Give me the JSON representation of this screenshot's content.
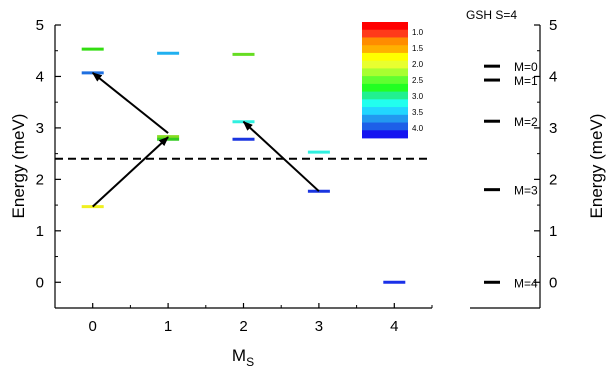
{
  "chart_data": [
    {
      "type": "scatter",
      "mark": "horizontal-level",
      "xlabel": "M",
      "xlabel_subscript": "S",
      "ylabel": "Energy (meV)",
      "xlim": [
        -0.5,
        4.5
      ],
      "ylim": [
        -0.5,
        5
      ],
      "x_ticks": [
        "0",
        "1",
        "2",
        "3",
        "4"
      ],
      "y_ticks": [
        "0",
        "1",
        "2",
        "3",
        "4",
        "5"
      ],
      "levels": [
        {
          "x": 0,
          "y": 4.53,
          "color": "#33dd11"
        },
        {
          "x": 0,
          "y": 4.07,
          "color": "#1e6fe0"
        },
        {
          "x": 0,
          "y": 1.47,
          "color": "#f0f020"
        },
        {
          "x": 1,
          "y": 4.45,
          "color": "#20b0f0"
        },
        {
          "x": 1,
          "y": 2.83,
          "color": "#88dd22"
        },
        {
          "x": 1,
          "y": 2.78,
          "color": "#33cc22"
        },
        {
          "x": 2,
          "y": 4.43,
          "color": "#66dd22"
        },
        {
          "x": 2,
          "y": 3.12,
          "color": "#30f0e0"
        },
        {
          "x": 2,
          "y": 2.78,
          "color": "#1a35e0"
        },
        {
          "x": 3,
          "y": 2.53,
          "color": "#30f0e0"
        },
        {
          "x": 3,
          "y": 1.77,
          "color": "#1a35e0"
        },
        {
          "x": 4,
          "y": 0.0,
          "color": "#1a30e8"
        }
      ],
      "arrows": [
        {
          "from": [
            0,
            1.47
          ],
          "to": [
            1,
            2.82
          ]
        },
        {
          "from": [
            1,
            2.9
          ],
          "to": [
            0,
            4.07
          ]
        },
        {
          "from": [
            3,
            1.77
          ],
          "to": [
            2,
            3.12
          ]
        }
      ],
      "reference_line": {
        "y": 2.4,
        "style": "dashed"
      },
      "colorbar": {
        "position": "top-right",
        "labels": [
          "1.0",
          "1.5",
          "2.0",
          "2.5",
          "3.0",
          "3.5",
          "4.0"
        ],
        "colors": [
          "#ff0000",
          "#ff3a1a",
          "#ff8c00",
          "#ffb000",
          "#ffff00",
          "#e8ff30",
          "#a8ff30",
          "#60ff30",
          "#22ff22",
          "#22f090",
          "#22ffee",
          "#22d6ff",
          "#2299f0",
          "#1d5fe8",
          "#1414f0"
        ]
      }
    },
    {
      "type": "scatter",
      "mark": "horizontal-level",
      "title": "GSH S=4",
      "ylabel": "Energy (meV)",
      "ylim": [
        -0.5,
        5
      ],
      "y_ticks": [
        "0",
        "1",
        "2",
        "3",
        "4",
        "5"
      ],
      "levels": [
        {
          "y": 4.2,
          "label": "M=0"
        },
        {
          "y": 3.93,
          "label": "M=1"
        },
        {
          "y": 3.13,
          "label": "M=2"
        },
        {
          "y": 1.8,
          "label": "M=3"
        },
        {
          "y": 0.0,
          "label": "M=4"
        }
      ]
    }
  ]
}
